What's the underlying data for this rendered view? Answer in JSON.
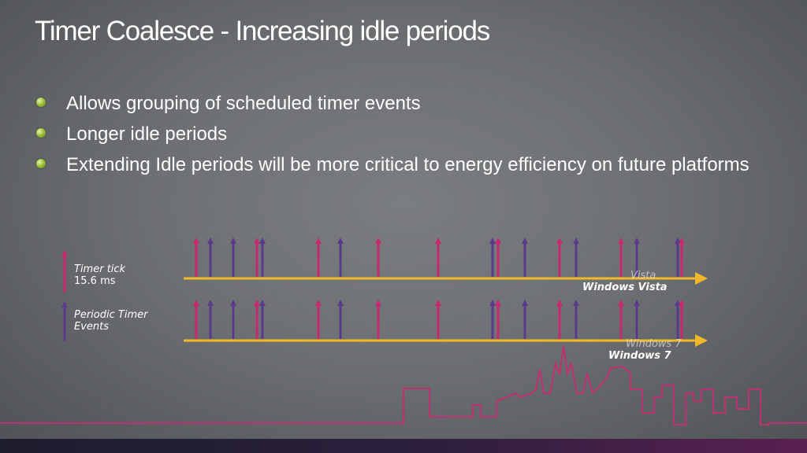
{
  "slide": {
    "title": "Timer Coalesce - Increasing idle periods",
    "bullets": [
      "Allows grouping of scheduled timer events",
      "Longer idle periods",
      "Extending Idle periods will be more critical to energy efficiency on future platforms"
    ]
  },
  "legend": {
    "tick_label": "Timer tick",
    "tick_value": "15.6 ms",
    "event_label_line1": "Periodic Timer",
    "event_label_line2": "Events"
  },
  "tracks": {
    "vista_ghost": "Vista",
    "vista_label": "Windows Vista",
    "win7_ghost": "Windows 7",
    "win7_label": "Windows 7"
  },
  "colors": {
    "tick": "#c8286e",
    "event": "#5a3a8a",
    "timeline": "#f0b82a",
    "bullet": "#9ec13a",
    "skyline": "#c03070"
  }
}
